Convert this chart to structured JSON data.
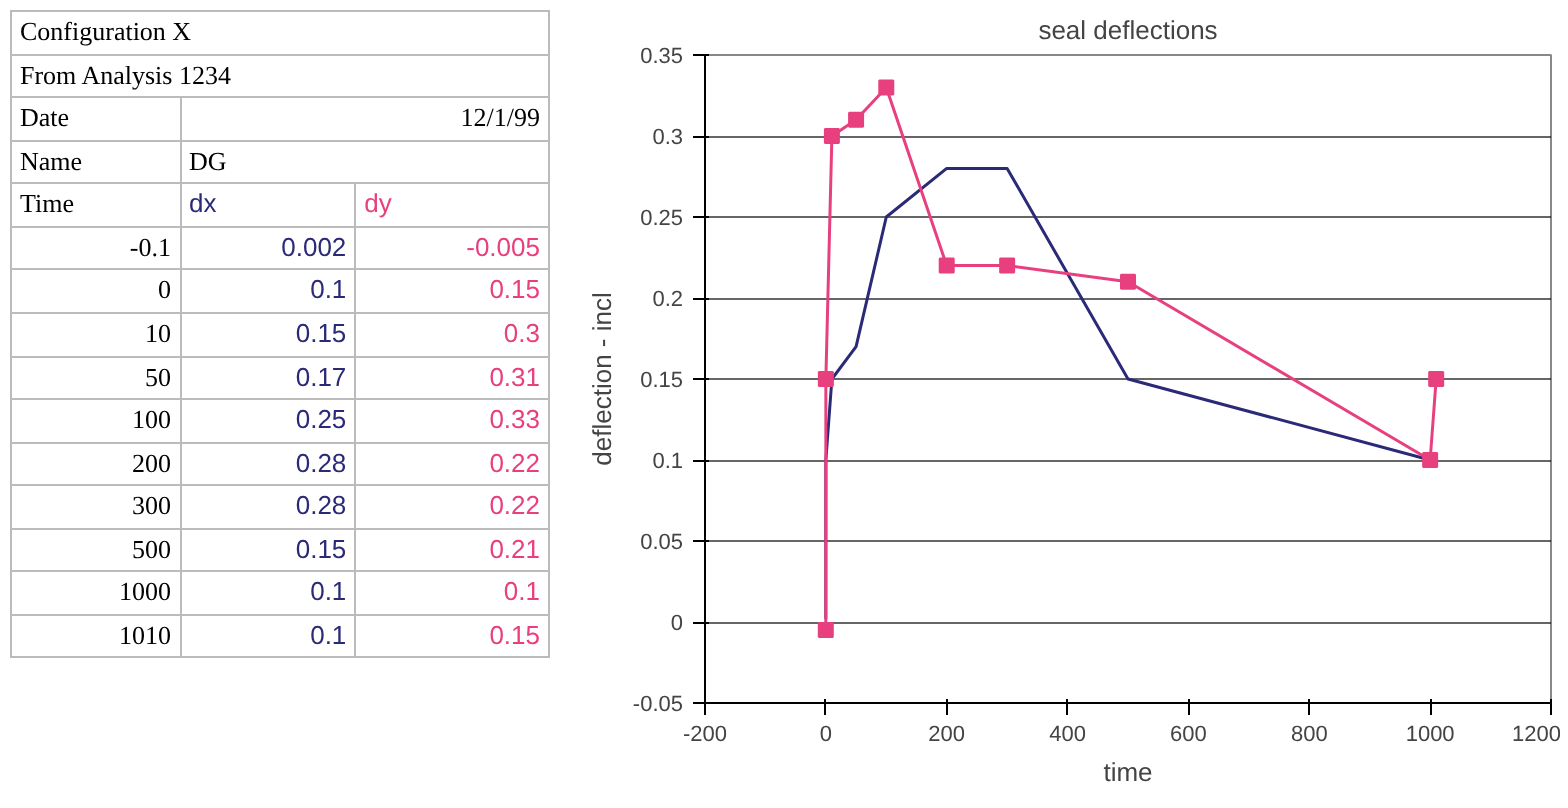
{
  "chart_data": [
    {
      "type": "other",
      "colors": [
        "#000000",
        "#2a2a78",
        "#e8407f"
      ],
      "annotations": [
        "Configuration X",
        "From Analysis 1234",
        "Date",
        "12/1/99",
        "Name",
        "DG",
        "Time",
        "dx",
        "dy",
        "-0.1",
        "0.002",
        "-0.005",
        "0",
        "0.1",
        "0.15",
        "10",
        "0.15",
        "0.3",
        "50",
        "0.17",
        "0.31",
        "100",
        "0.25",
        "0.33",
        "200",
        "0.28",
        "0.22",
        "300",
        "0.28",
        "0.22",
        "500",
        "0.15",
        "0.21",
        "1000",
        "0.1",
        "0.1",
        "1010",
        "0.1",
        "0.15"
      ]
    },
    {
      "type": "line",
      "title": "seal deflections",
      "xlabel": "time",
      "ylabel": "deflection - incl",
      "x": [
        -0.1,
        0,
        10,
        50,
        100,
        200,
        300,
        500,
        1000,
        1010
      ],
      "series": [
        {
          "color": "#2a2a78",
          "marker": "none",
          "values": [
            0.002,
            0.1,
            0.15,
            0.17,
            0.25,
            0.28,
            0.28,
            0.15,
            0.1,
            0.1
          ]
        },
        {
          "color": "#e8407f",
          "marker": "square",
          "values": [
            -0.005,
            0.15,
            0.3,
            0.31,
            0.33,
            0.22,
            0.22,
            0.21,
            0.1,
            0.15
          ]
        }
      ],
      "xlim": [
        -200,
        1200
      ],
      "xticks": [
        -200,
        0,
        200,
        400,
        600,
        800,
        1000,
        1200
      ],
      "ylim": [
        -0.05,
        0.35
      ],
      "yticks": [
        -0.05,
        0,
        0.05,
        0.1,
        0.15,
        0.2,
        0.25,
        0.3,
        0.35
      ],
      "grid": "y"
    }
  ]
}
